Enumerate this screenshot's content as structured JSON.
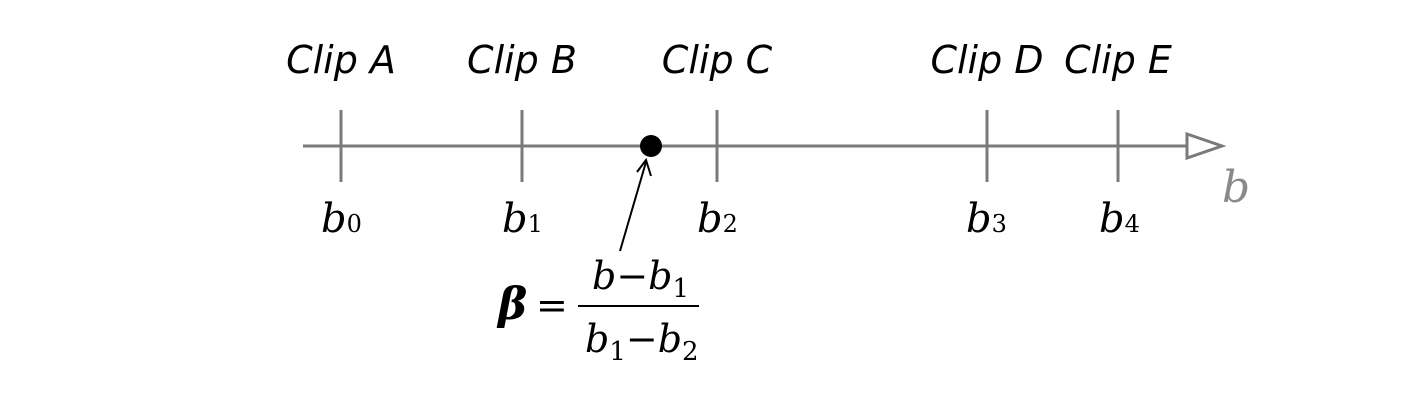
{
  "clips": [
    {
      "label": "Clip A",
      "pos_label": "b",
      "pos_sub": "0"
    },
    {
      "label": "Clip B",
      "pos_label": "b",
      "pos_sub": "1"
    },
    {
      "label": "Clip C",
      "pos_label": "b",
      "pos_sub": "2"
    },
    {
      "label": "Clip D",
      "pos_label": "b",
      "pos_sub": "3"
    },
    {
      "label": "Clip E",
      "pos_label": "b",
      "pos_sub": "4"
    }
  ],
  "axis": {
    "label": "b"
  },
  "formula": {
    "lhs": "β",
    "equals": "=",
    "numerator": {
      "a": "b",
      "minus": "−",
      "b": "b",
      "b_sub": "1"
    },
    "denominator": {
      "a": "b",
      "a_sub": "1",
      "minus": "−",
      "b": "b",
      "b_sub": "2"
    }
  },
  "colors": {
    "axis": "#7a7a7a",
    "point": "#000000",
    "text": "#000000",
    "axis_label": "#8a8a8a"
  }
}
